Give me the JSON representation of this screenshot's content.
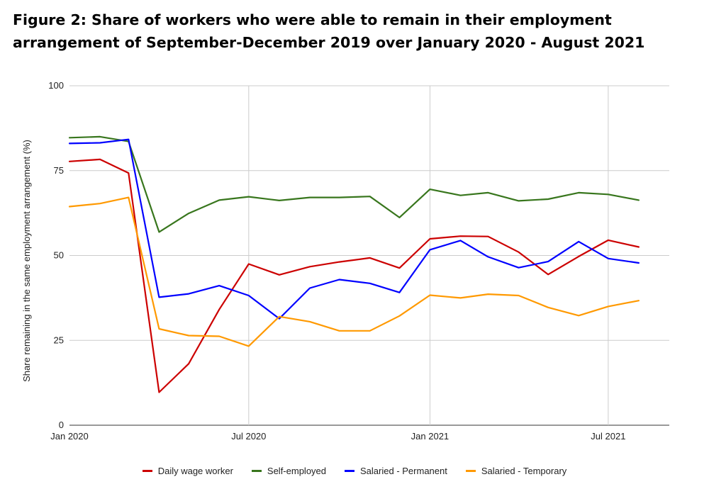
{
  "title": "Figure 2: Share of workers who were able to remain in their employment arrangement of September-December 2019 over January 2020 - August 2021",
  "chart_data": {
    "type": "line",
    "title": "Figure 2: Share of workers who were able to remain in their employment arrangement of September-December 2019 over January 2020 - August 2021",
    "xlabel": "",
    "ylabel": "Share remaining in the same employment arrangement (%)",
    "ylim": [
      0,
      100
    ],
    "yticks": [
      0,
      25,
      50,
      75,
      100
    ],
    "xticks": [
      "Jan 2020",
      "Jul 2020",
      "Jan 2021",
      "Jul 2021"
    ],
    "x": [
      "2020-01-01",
      "2020-02-01",
      "2020-03-01",
      "2020-04-01",
      "2020-05-01",
      "2020-06-01",
      "2020-07-01",
      "2020-08-01",
      "2020-09-01",
      "2020-10-01",
      "2020-11-01",
      "2020-12-01",
      "2021-01-01",
      "2021-02-01",
      "2021-03-01",
      "2021-04-01",
      "2021-05-01",
      "2021-06-01",
      "2021-07-01",
      "2021-08-01"
    ],
    "series": [
      {
        "name": "Daily wage worker",
        "color": "#cc0000",
        "values": [
          77.7,
          78.3,
          74.3,
          9.7,
          18.1,
          34.1,
          47.5,
          44.3,
          46.7,
          48.1,
          49.3,
          46.3,
          54.9,
          55.7,
          55.6,
          51.0,
          44.4,
          49.7,
          54.5,
          52.5
        ]
      },
      {
        "name": "Self-employed",
        "color": "#38761d",
        "values": [
          84.7,
          85.0,
          83.6,
          56.9,
          62.4,
          66.3,
          67.3,
          66.2,
          67.1,
          67.1,
          67.4,
          61.2,
          69.5,
          67.7,
          68.5,
          66.1,
          66.6,
          68.5,
          68.0,
          66.3
        ]
      },
      {
        "name": "Salaried - Permanent",
        "color": "#0000ff",
        "values": [
          83.0,
          83.2,
          84.2,
          37.7,
          38.7,
          41.1,
          38.2,
          31.4,
          40.4,
          42.9,
          41.8,
          39.1,
          51.7,
          54.4,
          49.6,
          46.4,
          48.2,
          54.1,
          49.1,
          47.8
        ]
      },
      {
        "name": "Salaried - Temporary",
        "color": "#ff9900",
        "values": [
          64.4,
          65.3,
          67.1,
          28.4,
          26.4,
          26.2,
          23.3,
          32.0,
          30.5,
          27.8,
          27.8,
          32.2,
          38.3,
          37.5,
          38.6,
          38.2,
          34.7,
          32.3,
          35.0,
          36.7
        ]
      }
    ],
    "grid": true,
    "legend": "bottom"
  }
}
